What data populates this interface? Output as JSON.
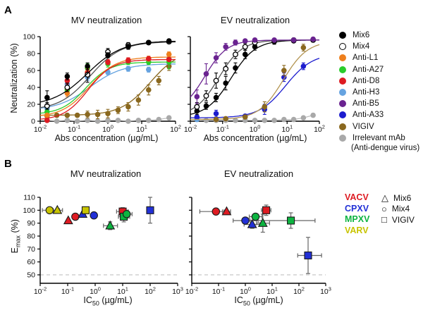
{
  "panels": {
    "a": "A",
    "b": "B"
  },
  "panel_b_labels": {
    "y_pre": "E",
    "y_sub": "max",
    "y_post": " (%)",
    "x_pre": "IC",
    "x_sub": "50",
    "x_post": " (µg/mL)"
  },
  "style": {
    "virus_colors": {
      "VACV": "#DE1B22",
      "CPXV": "#2230D6",
      "MPXV": "#0DB440",
      "VARV": "#C8C400"
    },
    "mix_shapes": {
      "Mix6": "triangle",
      "Mix4": "circle",
      "VIGIV": "square"
    },
    "axis_color": "#000000",
    "dashed_line_color": "#c8c8c8",
    "errorbar_color_b": "#666666"
  },
  "legend_a": {
    "items": [
      {
        "label": "Mix6",
        "color": "#000000",
        "open": false
      },
      {
        "label": "Mix4",
        "color": "#ffffff",
        "open": true
      },
      {
        "label": "Anti-L1",
        "color": "#EE7F1D",
        "open": false
      },
      {
        "label": "Anti-A27",
        "color": "#2BCC2B",
        "open": false
      },
      {
        "label": "Anti-D8",
        "color": "#DE1B22",
        "open": false
      },
      {
        "label": "Anti-H3",
        "color": "#66A3E0",
        "open": false
      },
      {
        "label": "Anti-B5",
        "color": "#6A2390",
        "open": false
      },
      {
        "label": "Anti-A33",
        "color": "#1C1CCE",
        "open": false
      },
      {
        "label": "VIGIV",
        "color": "#8A681F",
        "open": false
      },
      {
        "label": "Irrelevant mAb",
        "label2": "(Anti-dengue virus)",
        "color": "#A9A9A9",
        "open": false
      }
    ]
  },
  "legend_b": {
    "viruses": [
      {
        "label": "VACV",
        "color": "#DE1B22"
      },
      {
        "label": "CPXV",
        "color": "#2230D6"
      },
      {
        "label": "MPXV",
        "color": "#0DB440"
      },
      {
        "label": "VARV",
        "color": "#C8C400"
      }
    ],
    "groups": [
      {
        "label": "Mix6",
        "shape": "triangle",
        "glyph": "△"
      },
      {
        "label": "Mix4",
        "shape": "circle",
        "glyph": "○"
      },
      {
        "label": "VIGIV",
        "shape": "square",
        "glyph": "□"
      }
    ]
  },
  "chart_data": [
    {
      "type": "line",
      "panel": "A",
      "title": "MV neutralization",
      "xlabel": "Abs concentration (µg/mL)",
      "ylabel": "Neutralization (%)",
      "xscale": "log",
      "xtick_exp": [
        -2,
        -1,
        0,
        1,
        2
      ],
      "yticks": [
        0,
        20,
        40,
        60,
        80,
        100
      ],
      "ylim": [
        0,
        100
      ],
      "grid": false,
      "series": [
        {
          "name": "Irrelevant mAb (Anti-dengue virus)",
          "color": "#A9A9A9",
          "open": false,
          "fit": null,
          "x": [
            0.016,
            0.031,
            0.063,
            0.125,
            0.25,
            0.5,
            1,
            2,
            4,
            8,
            16,
            32,
            64
          ],
          "y": [
            1,
            0,
            1,
            0,
            1,
            0,
            1,
            1,
            0,
            1,
            1,
            2,
            4
          ],
          "yerr": [
            1,
            1,
            1,
            1,
            1,
            1,
            1,
            1,
            1,
            1,
            1,
            1,
            2
          ]
        },
        {
          "name": "VIGIV",
          "color": "#8A681F",
          "open": false,
          "fit": {
            "bottom": 7,
            "top": 85,
            "ec50": 18,
            "hill": 1.0
          },
          "x": [
            0.016,
            0.031,
            0.063,
            0.125,
            0.25,
            0.5,
            1,
            2,
            4,
            8,
            16,
            32,
            64
          ],
          "y": [
            6,
            7,
            7,
            7,
            8,
            8,
            9,
            13,
            17,
            25,
            37,
            48,
            65
          ],
          "yerr": [
            3,
            2,
            2,
            2,
            4,
            5,
            5,
            4,
            5,
            6,
            6,
            5,
            5
          ]
        },
        {
          "name": "Anti-H3",
          "color": "#66A3E0",
          "open": false,
          "fit": {
            "bottom": 13,
            "top": 68,
            "ec50": 0.3,
            "hill": 0.9
          },
          "x": [
            0.016,
            0.063,
            0.25,
            1,
            4,
            16,
            64
          ],
          "y": [
            15,
            44,
            52,
            58,
            62,
            61,
            74
          ],
          "yerr": [
            3,
            4,
            4,
            3,
            3,
            3,
            3
          ]
        },
        {
          "name": "Anti-A27",
          "color": "#2BCC2B",
          "open": false,
          "fit": {
            "bottom": 8,
            "top": 70,
            "ec50": 0.22,
            "hill": 1.2
          },
          "x": [
            0.016,
            0.063,
            0.25,
            1,
            4,
            16,
            64
          ],
          "y": [
            11,
            37,
            63,
            68,
            70,
            70,
            70
          ],
          "yerr": [
            3,
            4,
            5,
            4,
            3,
            3,
            8
          ]
        },
        {
          "name": "Anti-L1",
          "color": "#EE7F1D",
          "open": false,
          "fit": {
            "bottom": 5,
            "top": 76,
            "ec50": 0.28,
            "hill": 1.1
          },
          "x": [
            0.016,
            0.063,
            0.25,
            1,
            4,
            16,
            64
          ],
          "y": [
            7,
            33,
            58,
            70,
            72,
            74,
            79
          ],
          "yerr": [
            2,
            4,
            4,
            3,
            3,
            3,
            3
          ]
        },
        {
          "name": "Anti-D8",
          "color": "#DE1B22",
          "open": false,
          "fit": {
            "bottom": 1,
            "top": 73,
            "ec50": 0.26,
            "hill": 1.2
          },
          "x": [
            0.016,
            0.063,
            0.25,
            1,
            4,
            16,
            64
          ],
          "y": [
            1,
            48,
            57,
            70,
            72,
            74,
            73
          ],
          "yerr": [
            2,
            4,
            4,
            3,
            3,
            2,
            2
          ]
        },
        {
          "name": "Mix4",
          "color": "#000000",
          "open": true,
          "line_color": "#555555",
          "fit": {
            "bottom": 13,
            "top": 94,
            "ec50": 0.3,
            "hill": 0.95
          },
          "x": [
            0.016,
            0.063,
            0.25,
            1,
            4,
            16,
            64
          ],
          "y": [
            18,
            40,
            55,
            82,
            90,
            93,
            94
          ],
          "yerr": [
            4,
            5,
            9,
            4,
            3,
            2,
            2
          ]
        },
        {
          "name": "Mix6",
          "color": "#000000",
          "open": false,
          "fit": {
            "bottom": 18,
            "top": 95,
            "ec50": 0.25,
            "hill": 0.85
          },
          "x": [
            0.016,
            0.063,
            0.25,
            1,
            4,
            16,
            64
          ],
          "y": [
            28,
            53,
            65,
            78,
            88,
            93,
            95
          ],
          "yerr": [
            8,
            4,
            4,
            3,
            3,
            2,
            2
          ]
        }
      ]
    },
    {
      "type": "line",
      "panel": "A",
      "title": "EV neutralization",
      "xlabel": "Abs concentration (µg/mL)",
      "ylabel": "Neutralization (%)",
      "xscale": "log",
      "xtick_exp": [
        -2,
        -1,
        0,
        1,
        2
      ],
      "yticks": [
        0,
        20,
        40,
        60,
        80,
        100
      ],
      "ylim": [
        0,
        100
      ],
      "grid": false,
      "series": [
        {
          "name": "Irrelevant mAb (Anti-dengue virus)",
          "color": "#A9A9A9",
          "open": false,
          "fit": null,
          "x": [
            0.016,
            0.031,
            0.063,
            0.125,
            0.25,
            0.5,
            1,
            2,
            4,
            8,
            16,
            32,
            64
          ],
          "y": [
            3,
            1,
            1,
            1,
            1,
            1,
            1,
            1,
            1,
            2,
            2,
            4,
            7
          ],
          "yerr": [
            1,
            1,
            1,
            1,
            1,
            1,
            1,
            1,
            1,
            1,
            1,
            1,
            2
          ]
        },
        {
          "name": "Anti-H3",
          "color": "#66A3E0",
          "open": false,
          "fit": null,
          "x": [
            0.016
          ],
          "y": [
            2
          ],
          "yerr": [
            1
          ]
        },
        {
          "name": "Anti-A33",
          "color": "#1C1CCE",
          "open": false,
          "fit": {
            "bottom": 4,
            "top": 80,
            "ec50": 9,
            "hill": 1.05
          },
          "x": [
            0.016,
            0.063,
            0.5,
            2,
            8,
            32
          ],
          "y": [
            5,
            9,
            6,
            14,
            52,
            65
          ],
          "yerr": [
            2,
            4,
            2,
            6,
            5,
            4
          ]
        },
        {
          "name": "VIGIV",
          "color": "#8A681F",
          "open": false,
          "line_color": "#B49552",
          "fit": {
            "bottom": 2,
            "top": 95,
            "ec50": 7.5,
            "hill": 1.15
          },
          "x": [
            0.063,
            0.125,
            0.5,
            2,
            8,
            32
          ],
          "y": [
            2,
            3,
            5,
            17,
            60,
            87
          ],
          "yerr": [
            1,
            1,
            2,
            6,
            6,
            4
          ]
        },
        {
          "name": "Mix6",
          "color": "#000000",
          "open": false,
          "fit": {
            "bottom": 5,
            "top": 96,
            "ec50": 0.18,
            "hill": 1.15
          },
          "x": [
            0.016,
            0.031,
            0.063,
            0.125,
            0.25,
            0.5,
            1,
            4,
            16,
            64
          ],
          "y": [
            12,
            18,
            28,
            45,
            63,
            79,
            88,
            94,
            95,
            96
          ],
          "yerr": [
            4,
            4,
            5,
            8,
            6,
            5,
            4,
            3,
            2,
            2
          ]
        },
        {
          "name": "Mix4",
          "color": "#000000",
          "open": true,
          "line_color": "#555555",
          "fit": {
            "bottom": 6,
            "top": 96,
            "ec50": 0.075,
            "hill": 1.2
          },
          "x": [
            0.016,
            0.031,
            0.063,
            0.125,
            0.25,
            0.5,
            1,
            4,
            16,
            64
          ],
          "y": [
            17,
            30,
            48,
            62,
            79,
            88,
            93,
            95,
            96,
            96
          ],
          "yerr": [
            5,
            6,
            9,
            7,
            5,
            4,
            3,
            2,
            2,
            2
          ]
        },
        {
          "name": "Anti-B5",
          "color": "#6A2390",
          "open": false,
          "fit": {
            "bottom": 10,
            "top": 96,
            "ec50": 0.028,
            "hill": 1.25
          },
          "x": [
            0.016,
            0.031,
            0.063,
            0.125,
            0.25,
            0.5,
            1,
            4,
            16,
            64
          ],
          "y": [
            29,
            56,
            75,
            88,
            93,
            95,
            96,
            96,
            96,
            97
          ],
          "yerr": [
            8,
            12,
            6,
            4,
            3,
            2,
            2,
            2,
            2,
            2
          ]
        }
      ]
    },
    {
      "type": "scatter",
      "panel": "B",
      "title": "MV neutralization",
      "xlabel": "IC50 (µg/mL)",
      "ylabel": "Emax (%)",
      "xscale": "log",
      "xtick_exp": [
        -2,
        -1,
        0,
        1,
        2,
        3
      ],
      "yticks": [
        50,
        60,
        70,
        80,
        90,
        100,
        110
      ],
      "ylim": [
        50,
        110
      ],
      "dashed_y": 50,
      "grid": false,
      "points": [
        {
          "virus": "VARV",
          "mix": "Mix4",
          "x": 0.022,
          "y": 100,
          "xerr": [
            0.012,
            0.05
          ]
        },
        {
          "virus": "VARV",
          "mix": "Mix6",
          "x": 0.042,
          "y": 100,
          "xerr": [
            0.03,
            0.065
          ]
        },
        {
          "virus": "VACV",
          "mix": "Mix6",
          "x": 0.105,
          "y": 92
        },
        {
          "virus": "VACV",
          "mix": "Mix4",
          "x": 0.19,
          "y": 95
        },
        {
          "virus": "CPXV",
          "mix": "Mix6",
          "x": 0.35,
          "y": 97
        },
        {
          "virus": "VARV",
          "mix": "VIGIV",
          "x": 0.45,
          "y": 100
        },
        {
          "virus": "CPXV",
          "mix": "Mix4",
          "x": 0.9,
          "y": 96
        },
        {
          "virus": "MPXV",
          "mix": "Mix6",
          "x": 3.5,
          "y": 88,
          "xerr": [
            2,
            6.5
          ],
          "yerr": 3
        },
        {
          "virus": "VACV",
          "mix": "VIGIV",
          "x": 10,
          "y": 99,
          "xerr": [
            6,
            16
          ],
          "yerr": 3
        },
        {
          "virus": "MPXV",
          "mix": "VIGIV",
          "x": 11,
          "y": 95,
          "xerr": [
            7,
            18
          ],
          "yerr": 4
        },
        {
          "virus": "MPXV",
          "mix": "Mix4",
          "x": 14,
          "y": 97,
          "xerr": [
            9,
            22
          ],
          "yerr": 3
        },
        {
          "virus": "CPXV",
          "mix": "VIGIV",
          "x": 100,
          "y": 100,
          "yerr": 10
        }
      ]
    },
    {
      "type": "scatter",
      "panel": "B",
      "title": "EV neutralization",
      "xlabel": "IC50 (µg/mL)",
      "ylabel": "Emax (%)",
      "xscale": "log",
      "xtick_exp": [
        -2,
        -1,
        0,
        1,
        2,
        3
      ],
      "yticks": [
        50,
        60,
        70,
        80,
        90,
        100,
        110
      ],
      "ylim": [
        50,
        110
      ],
      "dashed_y": 50,
      "grid": false,
      "points": [
        {
          "virus": "VACV",
          "mix": "Mix4",
          "x": 0.08,
          "y": 99,
          "xerr": [
            0.02,
            0.16
          ]
        },
        {
          "virus": "VACV",
          "mix": "Mix6",
          "x": 0.2,
          "y": 99,
          "xerr": [
            0.14,
            0.28
          ]
        },
        {
          "virus": "VACV",
          "mix": "VIGIV",
          "x": 6,
          "y": 100,
          "xerr": [
            4,
            9
          ],
          "yerr": 4
        },
        {
          "virus": "CPXV",
          "mix": "Mix4",
          "x": 1.0,
          "y": 92,
          "xerr": [
            0.35,
            3
          ]
        },
        {
          "virus": "MPXV",
          "mix": "Mix4",
          "x": 2.4,
          "y": 95,
          "xerr": [
            1.4,
            4.2
          ]
        },
        {
          "virus": "CPXV",
          "mix": "Mix6",
          "x": 1.8,
          "y": 89,
          "xerr": [
            0.9,
            3.5
          ],
          "yerr": 3
        },
        {
          "virus": "MPXV",
          "mix": "Mix6",
          "x": 4.5,
          "y": 90,
          "xerr": [
            2.6,
            8
          ],
          "yerr": 7
        },
        {
          "virus": "MPXV",
          "mix": "VIGIV",
          "x": 50,
          "y": 92,
          "xerr": [
            1.5,
            400
          ],
          "yerr": 6
        },
        {
          "virus": "CPXV",
          "mix": "VIGIV",
          "x": 220,
          "y": 65,
          "xerr": [
            90,
            700
          ],
          "yerr": 14
        }
      ]
    }
  ]
}
